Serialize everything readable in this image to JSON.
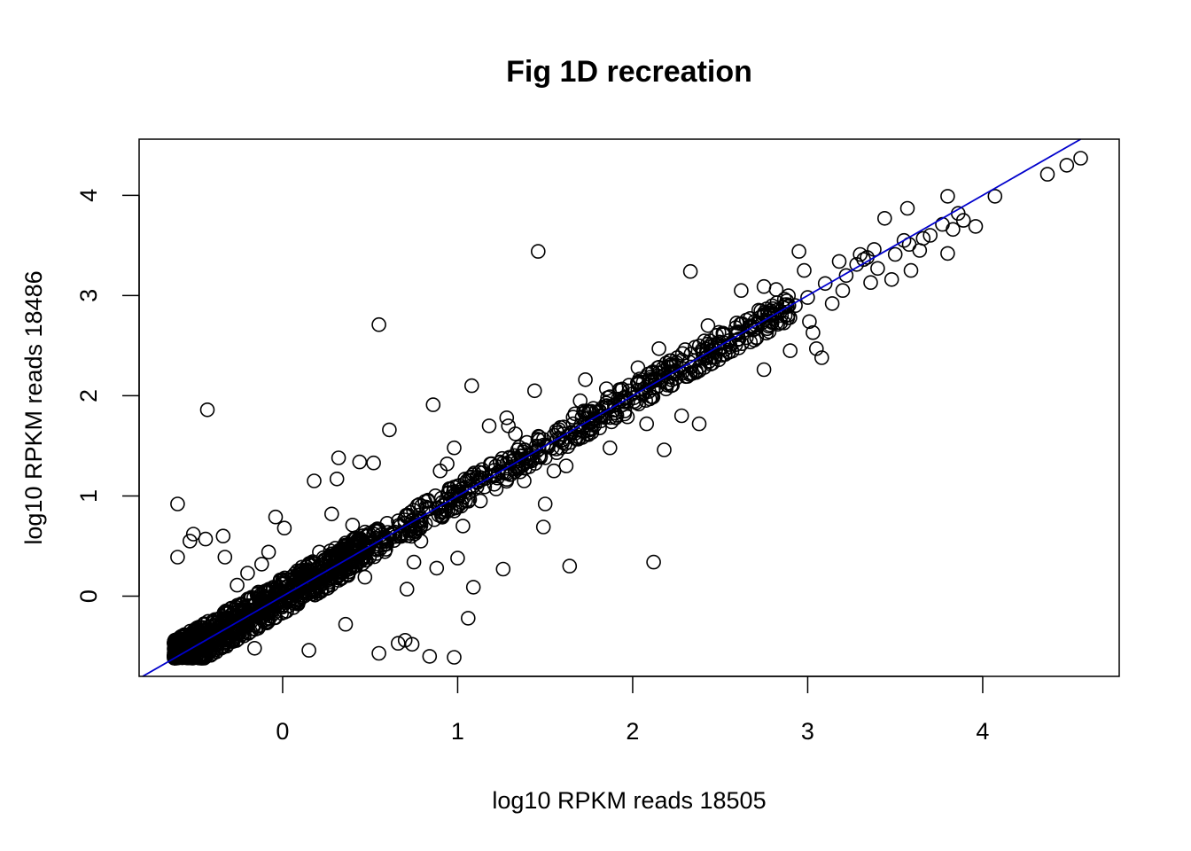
{
  "chart_data": {
    "type": "scatter",
    "title": "Fig 1D recreation",
    "xlabel": "log10 RPKM reads 18505",
    "ylabel": "log10 RPKM reads 18486",
    "xlim": [
      -0.82,
      4.78
    ],
    "ylim": [
      -0.8,
      4.56
    ],
    "x_ticks": [
      0,
      1,
      2,
      3,
      4
    ],
    "y_ticks": [
      0,
      1,
      2,
      3,
      4
    ],
    "grid": false,
    "point_style": "open circle",
    "point_color": "#000000",
    "reference_line": {
      "slope": 1,
      "intercept": 0,
      "color": "#0000cc"
    },
    "points": [
      [
        4.56,
        4.37
      ],
      [
        4.48,
        4.3
      ],
      [
        4.37,
        4.21
      ],
      [
        4.07,
        3.99
      ],
      [
        3.96,
        3.69
      ],
      [
        3.89,
        3.75
      ],
      [
        3.86,
        3.82
      ],
      [
        3.83,
        3.66
      ],
      [
        3.8,
        3.99
      ],
      [
        3.8,
        3.42
      ],
      [
        3.77,
        3.71
      ],
      [
        3.7,
        3.6
      ],
      [
        3.66,
        3.57
      ],
      [
        3.64,
        3.45
      ],
      [
        3.59,
        3.25
      ],
      [
        3.58,
        3.51
      ],
      [
        3.55,
        3.55
      ],
      [
        3.57,
        3.87
      ],
      [
        3.5,
        3.41
      ],
      [
        3.48,
        3.16
      ],
      [
        3.44,
        3.77
      ],
      [
        3.4,
        3.27
      ],
      [
        3.38,
        3.46
      ],
      [
        3.36,
        3.13
      ],
      [
        3.34,
        3.38
      ],
      [
        3.3,
        3.41
      ],
      [
        3.28,
        3.31
      ],
      [
        3.2,
        3.05
      ],
      [
        3.18,
        3.34
      ],
      [
        3.14,
        2.92
      ],
      [
        3.1,
        3.12
      ],
      [
        3.08,
        2.38
      ],
      [
        3.05,
        2.47
      ],
      [
        3.03,
        2.63
      ],
      [
        3.01,
        2.74
      ],
      [
        2.98,
        3.25
      ],
      [
        2.95,
        3.44
      ],
      [
        2.93,
        2.9
      ],
      [
        2.9,
        2.45
      ],
      [
        2.85,
        2.8
      ],
      [
        2.82,
        3.06
      ],
      [
        2.78,
        2.64
      ],
      [
        2.75,
        2.26
      ],
      [
        2.75,
        3.09
      ],
      [
        2.7,
        2.71
      ],
      [
        2.65,
        2.58
      ],
      [
        2.62,
        3.05
      ],
      [
        2.55,
        2.55
      ],
      [
        2.5,
        2.48
      ],
      [
        2.45,
        2.38
      ],
      [
        2.43,
        2.7
      ],
      [
        2.38,
        2.25
      ],
      [
        2.33,
        3.24
      ],
      [
        2.38,
        1.72
      ],
      [
        2.3,
        2.46
      ],
      [
        2.25,
        2.33
      ],
      [
        2.28,
        1.8
      ],
      [
        2.22,
        2.1
      ],
      [
        2.18,
        1.46
      ],
      [
        2.15,
        2.47
      ],
      [
        2.12,
        0.34
      ],
      [
        2.08,
        1.72
      ],
      [
        2.03,
        2.28
      ],
      [
        2.0,
        2.02
      ],
      [
        1.97,
        1.79
      ],
      [
        1.92,
        1.94
      ],
      [
        1.87,
        1.48
      ],
      [
        1.81,
        1.8
      ],
      [
        1.74,
        1.62
      ],
      [
        1.73,
        2.16
      ],
      [
        1.7,
        1.95
      ],
      [
        1.67,
        1.82
      ],
      [
        1.62,
        1.3
      ],
      [
        1.59,
        1.48
      ],
      [
        1.64,
        0.3
      ],
      [
        1.55,
        1.25
      ],
      [
        1.5,
        0.92
      ],
      [
        1.49,
        0.69
      ],
      [
        1.46,
        3.44
      ],
      [
        1.44,
        2.05
      ],
      [
        1.4,
        1.38
      ],
      [
        1.38,
        1.15
      ],
      [
        1.33,
        1.62
      ],
      [
        1.29,
        1.7
      ],
      [
        1.26,
        0.27
      ],
      [
        1.22,
        1.07
      ],
      [
        1.18,
        1.7
      ],
      [
        1.13,
        0.95
      ],
      [
        1.09,
        0.09
      ],
      [
        1.06,
        -0.22
      ],
      [
        1.08,
        2.1
      ],
      [
        1.03,
        0.7
      ],
      [
        1.0,
        0.38
      ],
      [
        0.98,
        1.48
      ],
      [
        0.94,
        1.32
      ],
      [
        0.9,
        1.25
      ],
      [
        0.88,
        0.28
      ],
      [
        0.86,
        1.91
      ],
      [
        0.84,
        -0.6
      ],
      [
        0.79,
        0.55
      ],
      [
        0.75,
        0.34
      ],
      [
        0.71,
        0.07
      ],
      [
        0.74,
        -0.48
      ],
      [
        0.66,
        -0.47
      ],
      [
        0.61,
        1.66
      ],
      [
        0.59,
        0.52
      ],
      [
        0.55,
        2.71
      ],
      [
        0.52,
        1.33
      ],
      [
        0.47,
        0.19
      ],
      [
        0.44,
        1.34
      ],
      [
        0.4,
        0.71
      ],
      [
        0.36,
        -0.28
      ],
      [
        0.32,
        1.38
      ],
      [
        0.31,
        1.17
      ],
      [
        0.28,
        0.82
      ],
      [
        0.24,
        0.24
      ],
      [
        0.21,
        0.44
      ],
      [
        0.18,
        1.15
      ],
      [
        0.15,
        -0.54
      ],
      [
        0.11,
        0.29
      ],
      [
        0.07,
        0.08
      ],
      [
        0.01,
        0.68
      ],
      [
        -0.04,
        0.79
      ],
      [
        -0.08,
        0.44
      ],
      [
        -0.12,
        0.32
      ],
      [
        -0.16,
        -0.52
      ],
      [
        -0.2,
        0.23
      ],
      [
        -0.26,
        0.11
      ],
      [
        -0.33,
        0.39
      ],
      [
        -0.34,
        0.6
      ],
      [
        -0.43,
        1.86
      ],
      [
        -0.44,
        0.57
      ],
      [
        -0.51,
        0.62
      ],
      [
        -0.53,
        0.55
      ],
      [
        -0.6,
        0.92
      ],
      [
        -0.6,
        0.39
      ],
      [
        0.98,
        -0.61
      ],
      [
        0.55,
        -0.57
      ],
      [
        0.7,
        -0.44
      ],
      [
        1.28,
        1.78
      ],
      [
        1.85,
        2.07
      ],
      [
        2.02,
        1.93
      ],
      [
        1.9,
        1.83
      ],
      [
        1.78,
        1.76
      ],
      [
        1.66,
        1.72
      ],
      [
        1.57,
        1.57
      ],
      [
        1.45,
        1.5
      ],
      [
        1.35,
        1.29
      ],
      [
        1.21,
        1.2
      ],
      [
        1.11,
        1.09
      ],
      [
        1.0,
        0.97
      ],
      [
        0.89,
        0.88
      ],
      [
        0.78,
        0.81
      ],
      [
        0.68,
        0.63
      ],
      [
        0.58,
        0.57
      ],
      [
        0.48,
        0.45
      ],
      [
        0.39,
        0.37
      ],
      [
        0.3,
        0.27
      ],
      [
        0.22,
        0.2
      ],
      [
        0.14,
        0.12
      ],
      [
        0.06,
        0.05
      ],
      [
        -0.02,
        -0.03
      ],
      [
        -0.1,
        -0.11
      ],
      [
        -0.18,
        -0.2
      ],
      [
        -0.27,
        -0.3
      ],
      [
        -0.35,
        -0.36
      ],
      [
        -0.43,
        -0.45
      ],
      [
        -0.5,
        -0.52
      ],
      [
        -0.57,
        -0.58
      ],
      [
        2.6,
        2.63
      ],
      [
        2.7,
        2.67
      ],
      [
        2.88,
        2.91
      ],
      [
        3.0,
        2.98
      ],
      [
        3.22,
        3.2
      ],
      [
        3.32,
        3.36
      ],
      [
        2.4,
        2.42
      ],
      [
        2.49,
        2.52
      ],
      [
        2.21,
        2.19
      ],
      [
        2.11,
        2.14
      ]
    ]
  }
}
